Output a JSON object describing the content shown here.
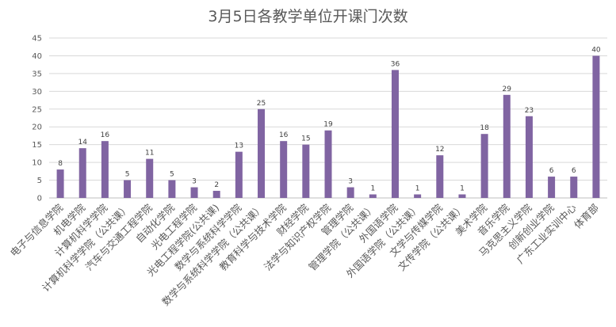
{
  "chart_data": {
    "type": "bar",
    "title": "3月5日各教学单位开课门次数",
    "categories": [
      "电子与信息学院",
      "机电学院",
      "计算机科学学院",
      "计算机科学学院（公共课）",
      "汽车与交通工程学院",
      "自动化学院",
      "光电工程学院",
      "光电工程学院(公共课)",
      "数学与系统科学学院",
      "数学与系统科学学院（公共课）",
      "教育科学与技术学院",
      "财经学院",
      "法学与知识产权学院",
      "管理学院",
      "管理学院（公共课）",
      "外国语学院",
      "外国语学院（公共课）",
      "文学与传媒学院",
      "文传学院（公共课）",
      "美术学院",
      "音乐学院",
      "马克思主义学院",
      "创新创业学院",
      "广东工业实训中心",
      "体育部"
    ],
    "values": [
      8,
      14,
      16,
      5,
      11,
      5,
      3,
      2,
      13,
      25,
      16,
      15,
      19,
      3,
      1,
      36,
      1,
      12,
      1,
      18,
      29,
      23,
      6,
      6,
      40
    ],
    "y_ticks": [
      "0",
      "5",
      "10",
      "15",
      "20",
      "25",
      "30",
      "35",
      "40",
      "45"
    ],
    "ylim": [
      0,
      45
    ],
    "grid": true,
    "legend": "none",
    "bar_color": "#8064a2"
  }
}
